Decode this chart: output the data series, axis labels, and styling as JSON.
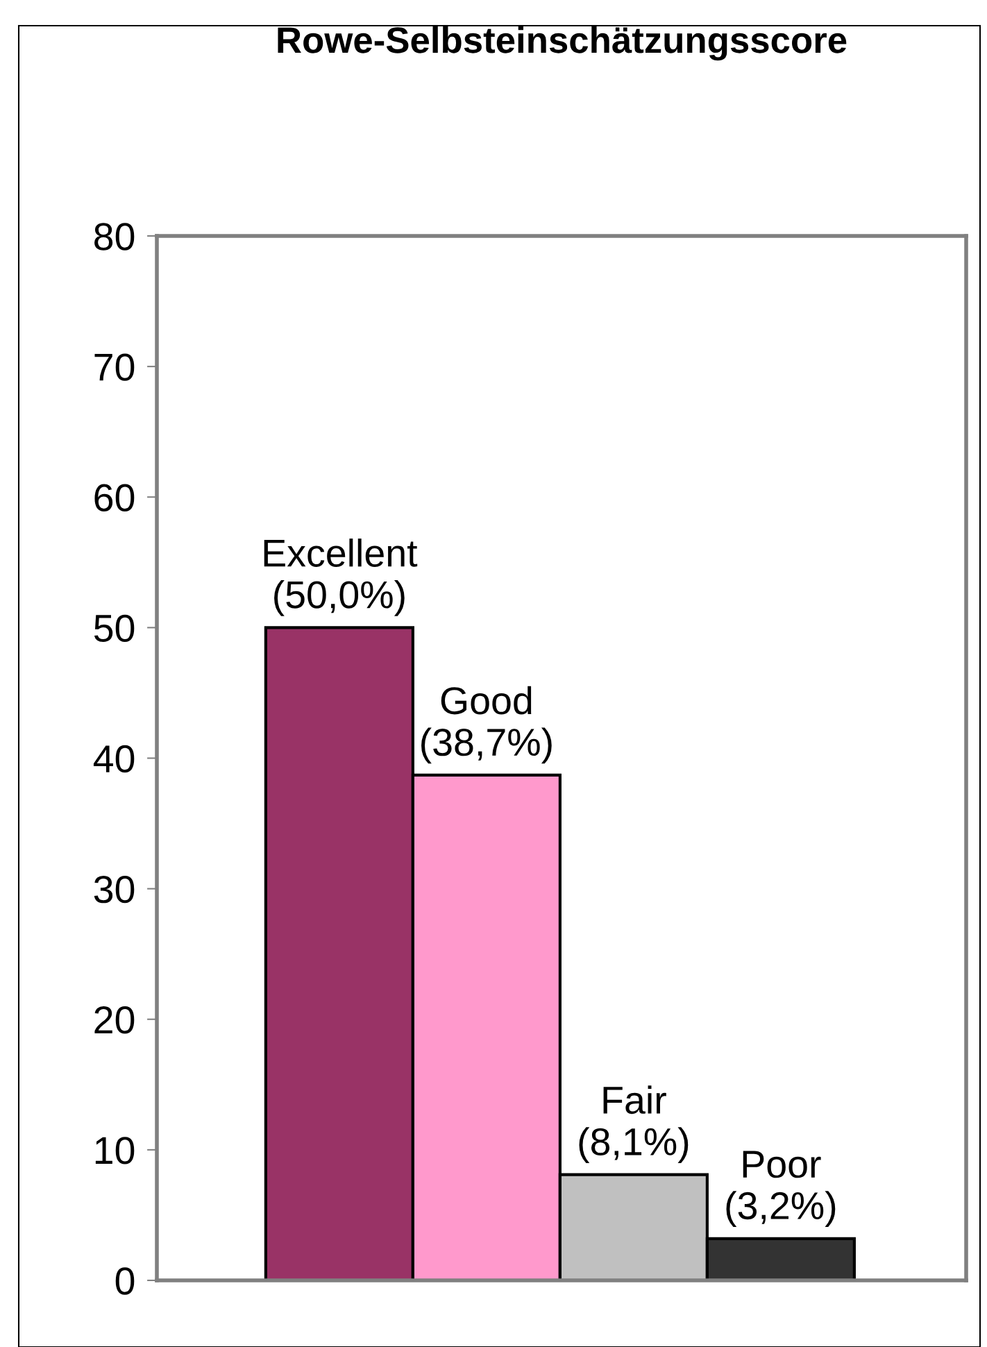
{
  "chart_data": {
    "type": "bar",
    "title": "Rowe-Selbsteinschätzungsscore",
    "categories": [
      "Excellent",
      "Good",
      "Fair",
      "Poor"
    ],
    "values": [
      50.0,
      38.7,
      8.1,
      3.2
    ],
    "colors": [
      "#993366",
      "#ff99cc",
      "#c0c0c0",
      "#333333"
    ],
    "value_labels": [
      "(50,0%)",
      "(38,7%)",
      "(8,1%)",
      "(3,2%)"
    ],
    "ylim": [
      0,
      80
    ],
    "yticks": [
      0,
      10,
      20,
      30,
      40,
      50,
      60,
      70,
      80
    ],
    "grid": false,
    "legend": false,
    "tick_labels": "y"
  }
}
